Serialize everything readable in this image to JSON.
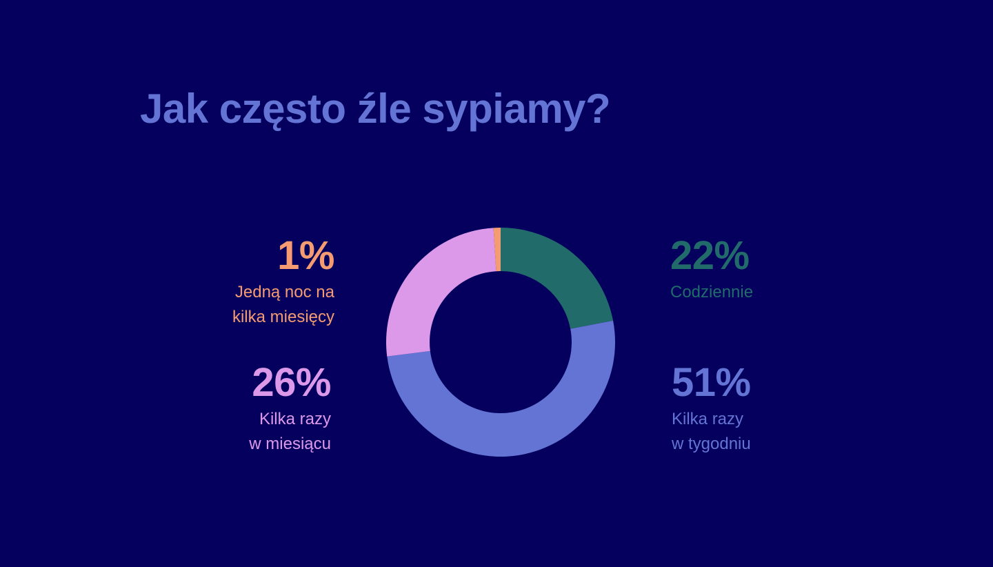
{
  "colors": {
    "background": "#05005e",
    "title": "#6474d4",
    "daily": "#216b6b",
    "weekly": "#6474d4",
    "monthly": "#dd99e9",
    "rarely": "#f59b72"
  },
  "chart_data": {
    "type": "pie",
    "title": "Jak często źle sypiamy?",
    "donut": true,
    "slices": [
      {
        "key": "daily",
        "pct_label": "22%",
        "label": "Codziennie",
        "value": 22,
        "color": "#216b6b"
      },
      {
        "key": "weekly",
        "pct_label": "51%",
        "label": "Kilka razy\nw tygodniu",
        "value": 51,
        "color": "#6474d4"
      },
      {
        "key": "monthly",
        "pct_label": "26%",
        "label": "Kilka razy\nw miesiącu",
        "value": 26,
        "color": "#dd99e9"
      },
      {
        "key": "rarely",
        "pct_label": "1%",
        "label": "Jedną noc na\nkilka miesięcy",
        "value": 1,
        "color": "#f59b72"
      }
    ]
  }
}
